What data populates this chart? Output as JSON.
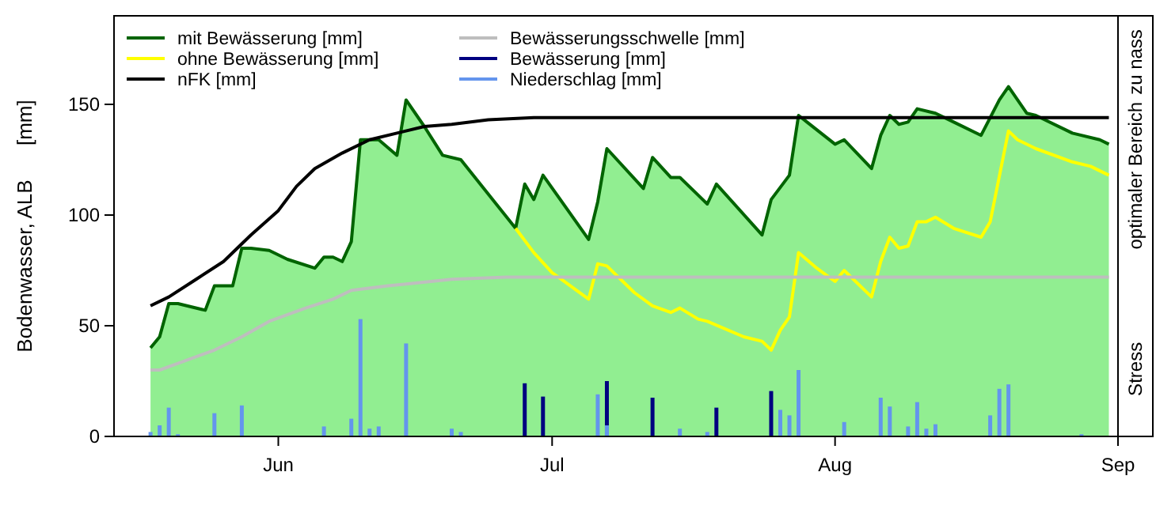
{
  "chart_data": {
    "type": "line",
    "ylabel": "Bodenwasser, ALB      [mm]",
    "ylim": [
      0,
      190
    ],
    "yticks": [
      0,
      50,
      100,
      150
    ],
    "xlim": [
      "--05-14",
      "--09-01"
    ],
    "xticks": [
      {
        "value": "--06-01",
        "label": "Jun"
      },
      {
        "value": "--07-01",
        "label": "Jul"
      },
      {
        "value": "--08-01",
        "label": "Aug"
      },
      {
        "value": "--09-01",
        "label": "Sep"
      }
    ],
    "legend": "top left",
    "grid": false,
    "marker": "none",
    "annotations": [
      "zu nass",
      "optimaler Bereich",
      "Stress"
    ],
    "series": [
      {
        "name": "mit Bewässerung [mm]",
        "type": "area",
        "color": "#006400",
        "x": [
          "--05-18",
          "--05-19",
          "--05-20",
          "--05-21",
          "--05-24",
          "--05-25",
          "--05-27",
          "--05-28",
          "--05-29",
          "--05-31",
          "--06-02",
          "--06-05",
          "--06-06",
          "--06-07",
          "--06-08",
          "--06-09",
          "--06-10",
          "--06-12",
          "--06-14",
          "--06-15",
          "--06-17",
          "--06-19",
          "--06-21",
          "--06-27",
          "--06-28",
          "--06-29",
          "--06-30",
          "--07-05",
          "--07-06",
          "--07-07",
          "--07-11",
          "--07-12",
          "--07-14",
          "--07-15",
          "--07-18",
          "--07-19",
          "--07-24",
          "--07-25",
          "--07-27",
          "--07-28",
          "--08-01",
          "--08-02",
          "--08-05",
          "--08-06",
          "--08-07",
          "--08-08",
          "--08-09",
          "--08-10",
          "--08-12",
          "--08-14",
          "--08-17",
          "--08-19",
          "--08-20",
          "--08-22",
          "--08-23",
          "--08-27",
          "--08-30",
          "--08-31"
        ],
        "values": [
          40,
          45,
          60,
          60,
          57,
          68,
          68,
          85,
          85,
          84,
          80,
          76,
          81,
          81,
          79,
          88,
          134,
          134,
          127,
          152,
          140,
          127,
          125,
          94,
          114,
          107,
          118,
          89,
          106,
          130,
          112,
          126,
          117,
          117,
          105,
          114,
          91,
          107,
          118,
          145,
          132,
          134,
          121,
          136,
          145,
          141,
          142,
          148,
          146,
          142,
          136,
          152,
          158,
          146,
          145,
          137,
          134,
          132
        ]
      },
      {
        "name": "ohne Bewässerung [mm]",
        "color": "#ffff00",
        "x": [
          "--06-27",
          "--06-29",
          "--07-01",
          "--07-02",
          "--07-05",
          "--07-06",
          "--07-07",
          "--07-10",
          "--07-12",
          "--07-14",
          "--07-15",
          "--07-17",
          "--07-18",
          "--07-22",
          "--07-24",
          "--07-25",
          "--07-26",
          "--07-27",
          "--07-28",
          "--07-30",
          "--07-31",
          "--08-01",
          "--08-02",
          "--08-05",
          "--08-06",
          "--08-07",
          "--08-08",
          "--08-09",
          "--08-10",
          "--08-11",
          "--08-12",
          "--08-14",
          "--08-17",
          "--08-18",
          "--08-20",
          "--08-21",
          "--08-23",
          "--08-27",
          "--08-29",
          "--08-31"
        ],
        "values": [
          94,
          83,
          74,
          71,
          62,
          78,
          77,
          65,
          59,
          56,
          58,
          53,
          52,
          45,
          43,
          39,
          48,
          54,
          83,
          76,
          73,
          70,
          75,
          63,
          79,
          90,
          85,
          86,
          97,
          97,
          99,
          94,
          90,
          97,
          138,
          134,
          130,
          124,
          122,
          118
        ]
      },
      {
        "name": "nFK [mm]",
        "color": "#000000",
        "x": [
          "--05-18",
          "--05-20",
          "--05-23",
          "--05-26",
          "--05-29",
          "--06-01",
          "--06-03",
          "--06-05",
          "--06-08",
          "--06-11",
          "--06-14",
          "--06-17",
          "--06-20",
          "--06-24",
          "--06-29",
          "--08-31"
        ],
        "values": [
          59,
          63,
          71,
          79,
          91,
          102,
          113,
          121,
          128,
          134,
          137,
          140,
          141,
          143,
          144,
          144
        ]
      },
      {
        "name": "Bewässerungsschwelle [mm]",
        "color": "#bebebe",
        "x": [
          "--05-18",
          "--05-19",
          "--05-21",
          "--05-25",
          "--05-28",
          "--05-31",
          "--06-04",
          "--06-07",
          "--06-09",
          "--06-13",
          "--06-20",
          "--06-26",
          "--08-31"
        ],
        "values": [
          30,
          30,
          33,
          39,
          45,
          52,
          58,
          62,
          66,
          68,
          71,
          72,
          72
        ]
      },
      {
        "name": "Bewässerung [mm]",
        "type": "bar",
        "color": "#000080",
        "x": [
          "--06-28",
          "--06-30",
          "--07-07",
          "--07-12",
          "--07-19",
          "--07-25"
        ],
        "values": [
          24,
          18,
          25,
          17.5,
          13,
          20.5
        ]
      },
      {
        "name": "Niederschlag [mm]",
        "type": "bar",
        "color": "#6495ed",
        "x": [
          "--05-18",
          "--05-19",
          "--05-20",
          "--05-21",
          "--05-25",
          "--05-28",
          "--06-06",
          "--06-09",
          "--06-10",
          "--06-11",
          "--06-12",
          "--06-15",
          "--06-20",
          "--06-21",
          "--07-06",
          "--07-07",
          "--07-15",
          "--07-18",
          "--07-26",
          "--07-27",
          "--07-28",
          "--08-02",
          "--08-06",
          "--08-07",
          "--08-09",
          "--08-10",
          "--08-11",
          "--08-12",
          "--08-18",
          "--08-19",
          "--08-20",
          "--08-28"
        ],
        "values": [
          2,
          5,
          13,
          1,
          10.5,
          14,
          4.5,
          8,
          53,
          3.5,
          4.5,
          42,
          3.5,
          2,
          19,
          5,
          3.5,
          2,
          12,
          9.5,
          30,
          6.5,
          17.5,
          13.5,
          4.5,
          15.5,
          3.5,
          5.5,
          9.5,
          21.5,
          23.5,
          1
        ]
      }
    ]
  }
}
